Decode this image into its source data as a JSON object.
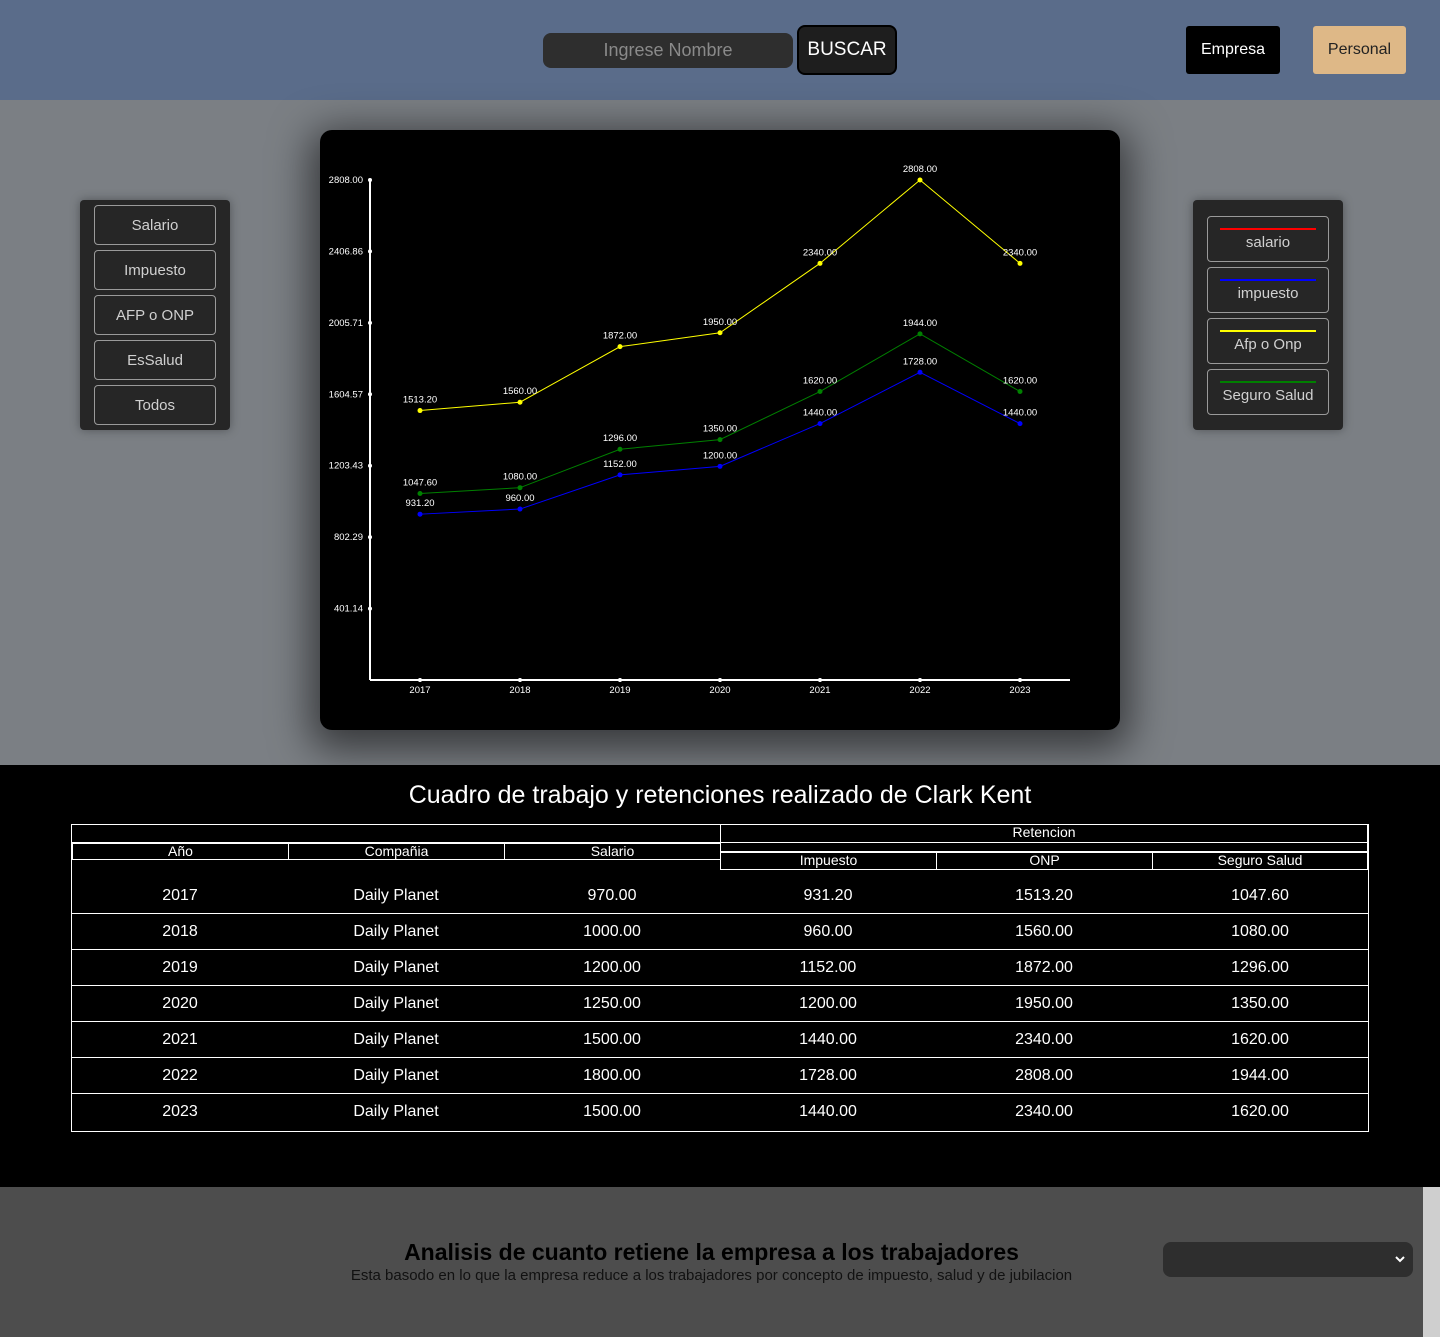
{
  "header": {
    "search_placeholder": "Ingrese Nombre",
    "search_button": "BUSCAR",
    "empresa_button": "Empresa",
    "personal_button": "Personal"
  },
  "filters": [
    "Salario",
    "Impuesto",
    "AFP o ONP",
    "EsSalud",
    "Todos"
  ],
  "legend": [
    {
      "label": "salario",
      "color": "#ff0000"
    },
    {
      "label": "impuesto",
      "color": "#0000ff"
    },
    {
      "label": "Afp o Onp",
      "color": "#ffff00"
    },
    {
      "label": "Seguro Salud",
      "color": "#008000"
    }
  ],
  "chart_data": {
    "type": "line",
    "categories": [
      "2017",
      "2018",
      "2019",
      "2020",
      "2021",
      "2022",
      "2023"
    ],
    "y_ticks": [
      "401.14",
      "802.29",
      "1203.43",
      "1604.57",
      "2005.71",
      "2406.86",
      "2808.00"
    ],
    "ylim": [
      0,
      2808
    ],
    "grid": false,
    "series": [
      {
        "name": "Afp o Onp",
        "color": "#ffff00",
        "values": [
          1513.2,
          1560.0,
          1872.0,
          1950.0,
          2340.0,
          2808.0,
          2340.0
        ]
      },
      {
        "name": "Seguro Salud",
        "color": "#008000",
        "values": [
          1047.6,
          1080.0,
          1296.0,
          1350.0,
          1620.0,
          1944.0,
          1620.0
        ]
      },
      {
        "name": "impuesto",
        "color": "#0000ff",
        "values": [
          931.2,
          960.0,
          1152.0,
          1200.0,
          1440.0,
          1728.0,
          1440.0
        ]
      }
    ]
  },
  "table": {
    "title": "Cuadro de trabajo y retenciones realizado de Clark Kent",
    "group_header": "Retencion",
    "headers": {
      "anio": "Año",
      "compania": "Compañia",
      "salario": "Salario",
      "impuesto": "Impuesto",
      "onp": "ONP",
      "seguro": "Seguro Salud"
    },
    "rows": [
      [
        "2017",
        "Daily Planet",
        "970.00",
        "931.20",
        "1513.20",
        "1047.60"
      ],
      [
        "2018",
        "Daily Planet",
        "1000.00",
        "960.00",
        "1560.00",
        "1080.00"
      ],
      [
        "2019",
        "Daily Planet",
        "1200.00",
        "1152.00",
        "1872.00",
        "1296.00"
      ],
      [
        "2020",
        "Daily Planet",
        "1250.00",
        "1200.00",
        "1950.00",
        "1350.00"
      ],
      [
        "2021",
        "Daily Planet",
        "1500.00",
        "1440.00",
        "2340.00",
        "1620.00"
      ],
      [
        "2022",
        "Daily Planet",
        "1800.00",
        "1728.00",
        "2808.00",
        "1944.00"
      ],
      [
        "2023",
        "Daily Planet",
        "1500.00",
        "1440.00",
        "2340.00",
        "1620.00"
      ]
    ]
  },
  "analysis": {
    "title": "Analisis de cuanto retiene la empresa a los trabajadores",
    "subtitle": "Esta basodo en lo que la empresa reduce a los trabajadores por concepto de impuesto, salud y de jubilacion",
    "select_value": ""
  }
}
